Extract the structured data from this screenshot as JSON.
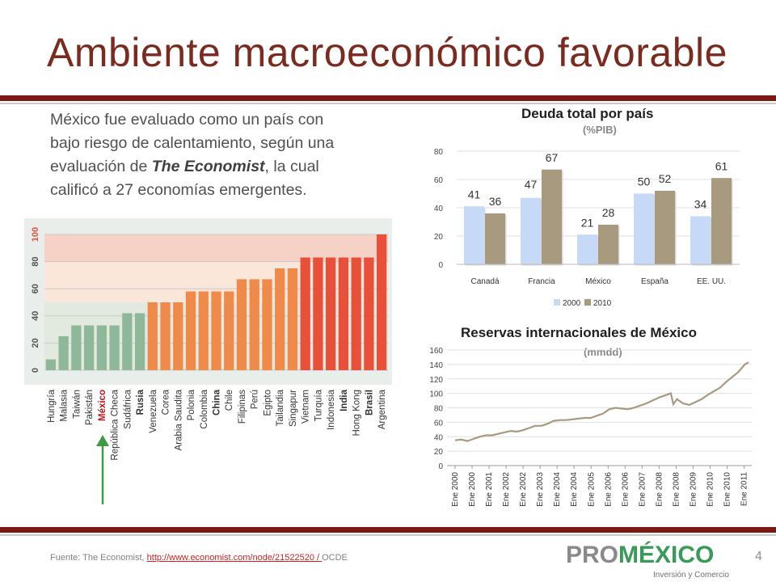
{
  "slide": {
    "title": "Ambiente macroeconómico favorable",
    "intro_prefix": "México fue evaluado como un país con bajo riesgo de calentamiento, según una evaluación de ",
    "intro_em": "The Economist",
    "intro_suffix": ", la cual calificó a 27 economías emergentes.",
    "source_prefix": "Fuente: The Economist, ",
    "source_link": "http://www.economist.com/node/21522520 / ",
    "source_suffix": "OCDE",
    "page_number": "4",
    "logo_pro": "PRO",
    "logo_mexico": "MÉXICO",
    "logo_sub": "Inversión y Comercio"
  },
  "colors": {
    "title": "#7a2a1e",
    "rule": "#7b1a13",
    "green": "#8fb89a",
    "orange": "#f08a4b",
    "red": "#e8503a",
    "bar2000": "#c6d9f7",
    "bar2010": "#a89a7f",
    "line": "#a89a7f",
    "arrow": "#3f9a45"
  },
  "chart_data": [
    {
      "type": "bar",
      "title": "",
      "xlabel": "",
      "ylabel": "",
      "ylim": [
        0,
        100
      ],
      "yticks": [
        0,
        20,
        40,
        60,
        80,
        100
      ],
      "highlight": "México",
      "bold_categories": [
        "México",
        "Rusia",
        "China",
        "India",
        "Brasil"
      ],
      "categories": [
        "Hungría",
        "Malasia",
        "Taiwán",
        "Pakistán",
        "México",
        "República Checa",
        "Sudáfrica",
        "Rusia",
        "Venezuela",
        "Corea",
        "Arabia Saudita",
        "Polonia",
        "Colombia",
        "China",
        "Chile",
        "Filipinas",
        "Perú",
        "Egipto",
        "Tailandia",
        "Singapur",
        "Vietnam",
        "Turquía",
        "Indonesia",
        "India",
        "Hong Kong",
        "Brasil",
        "Argentina"
      ],
      "values": [
        8,
        25,
        33,
        33,
        33,
        33,
        42,
        42,
        50,
        50,
        50,
        58,
        58,
        58,
        58,
        67,
        67,
        67,
        75,
        75,
        83,
        83,
        83,
        83,
        83,
        83,
        100
      ],
      "bands": [
        "green",
        "orange",
        "red"
      ]
    },
    {
      "type": "bar",
      "title": "Deuda total por país",
      "subtitle": "(%PIB)",
      "xlabel": "",
      "ylabel": "",
      "ylim": [
        0,
        80
      ],
      "yticks": [
        0,
        20,
        40,
        60,
        80
      ],
      "categories": [
        "Canadá",
        "Francia",
        "México",
        "España",
        "EE. UU."
      ],
      "series": [
        {
          "name": "2000",
          "values": [
            41,
            47,
            21,
            50,
            34
          ]
        },
        {
          "name": "2010",
          "values": [
            36,
            67,
            28,
            52,
            61
          ]
        }
      ],
      "legend": "bottom"
    },
    {
      "type": "line",
      "title": "Reservas internacionales de México",
      "subtitle": "(mmdd)",
      "xlabel": "",
      "ylabel": "",
      "ylim": [
        0,
        160
      ],
      "yticks": [
        0,
        20,
        40,
        60,
        80,
        100,
        120,
        140,
        160
      ],
      "xticklabels": [
        "Ene 2000",
        "Ene 2000",
        "Ene 2001",
        "Ene 2002",
        "Ene 2002",
        "Ene 2003",
        "Ene 2004",
        "Ene 2004",
        "Ene 2005",
        "Ene 2006",
        "Ene 2006",
        "Ene 2007",
        "Ene 2008",
        "Ene 2008",
        "Ene 2009",
        "Ene 2010",
        "Ene 2010",
        "Ene 2011"
      ],
      "x": [
        2000.0,
        2000.25,
        2000.5,
        2000.75,
        2001.0,
        2001.25,
        2001.5,
        2001.75,
        2002.0,
        2002.25,
        2002.5,
        2002.75,
        2003.0,
        2003.25,
        2003.5,
        2003.75,
        2004.0,
        2004.25,
        2004.5,
        2004.75,
        2005.0,
        2005.25,
        2005.5,
        2005.75,
        2006.0,
        2006.25,
        2006.5,
        2006.75,
        2007.0,
        2007.25,
        2007.5,
        2007.75,
        2008.0,
        2008.25,
        2008.5,
        2008.75,
        2008.85,
        2009.0,
        2009.25,
        2009.5,
        2009.75,
        2010.0,
        2010.25,
        2010.5,
        2010.75,
        2011.0,
        2011.25,
        2011.5,
        2011.75,
        2011.9
      ],
      "values": [
        35,
        36,
        34,
        37,
        40,
        42,
        42,
        44,
        46,
        48,
        47,
        49,
        52,
        55,
        55,
        58,
        62,
        63,
        63,
        64,
        65,
        66,
        66,
        69,
        72,
        78,
        80,
        79,
        78,
        80,
        83,
        86,
        90,
        94,
        97,
        100,
        85,
        92,
        86,
        84,
        88,
        92,
        98,
        103,
        108,
        116,
        123,
        130,
        140,
        143
      ]
    }
  ]
}
